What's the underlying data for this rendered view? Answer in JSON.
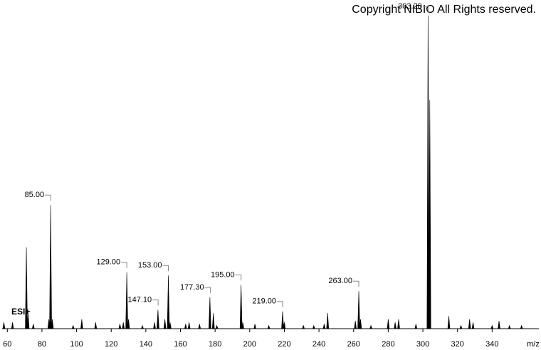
{
  "chart_data": {
    "type": "spectrum",
    "title": "Copyright NIBIO All Rights reserved.",
    "ion_mode": "ESI+",
    "x_label": "m/z",
    "color": "#000000",
    "x": [
      58,
      63,
      71,
      72,
      75,
      84,
      85,
      86,
      98,
      103,
      111,
      125,
      127,
      129,
      130,
      138,
      145,
      147,
      151,
      153,
      154,
      163,
      165,
      171,
      177,
      179,
      181,
      195,
      196,
      203,
      211,
      219,
      220,
      231,
      237,
      243,
      245,
      261,
      263,
      264,
      270,
      280,
      284,
      286,
      296,
      303,
      304,
      315,
      322,
      327,
      329,
      340,
      344,
      350,
      357
    ],
    "values": [
      2,
      2,
      26,
      5,
      1.5,
      3,
      39.5,
      3,
      1,
      3,
      2,
      1.5,
      2,
      18,
      3,
      1,
      2,
      6,
      3,
      17,
      2,
      1.5,
      2,
      1.5,
      10,
      5,
      1,
      14,
      2,
      1.5,
      1,
      5.5,
      2,
      1,
      1,
      1.5,
      5,
      2.5,
      12,
      3,
      1,
      3,
      2,
      3,
      1.5,
      100,
      73,
      4,
      1,
      3,
      2,
      1,
      2.5,
      1,
      1
    ],
    "annotations": [
      {
        "value": 85,
        "label": "85.00"
      },
      {
        "value": 129,
        "label": "129.00"
      },
      {
        "value": 147.1,
        "label": "147.10"
      },
      {
        "value": 153,
        "label": "153.00"
      },
      {
        "value": 177.3,
        "label": "177.30"
      },
      {
        "value": 195,
        "label": "195.00"
      },
      {
        "value": 219,
        "label": "219.00"
      },
      {
        "value": 263,
        "label": "263.00"
      },
      {
        "value": 303.2,
        "label": "303.20"
      }
    ],
    "annotation_heights": [
      39.5,
      18,
      6,
      17,
      10,
      14,
      5.5,
      12,
      100
    ],
    "xlim": [
      57,
      367
    ],
    "ylim": [
      0,
      100
    ],
    "xticks": [
      60,
      80,
      100,
      120,
      140,
      160,
      180,
      200,
      220,
      240,
      260,
      280,
      300,
      320,
      340
    ]
  }
}
